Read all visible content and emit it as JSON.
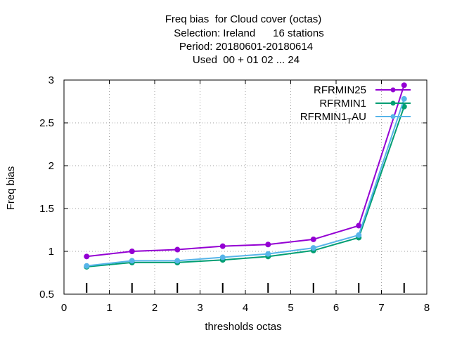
{
  "chart_data": {
    "type": "line",
    "title_lines": [
      "Freq bias  for Cloud cover (octas)",
      "Selection: Ireland      16 stations",
      "Period: 20180601-20180614",
      "Used  00 + 01 02 ... 24"
    ],
    "xlabel": "thresholds octas",
    "ylabel": "Freq bias",
    "xlim": [
      0,
      8
    ],
    "ylim": [
      0.5,
      3
    ],
    "x_ticks": [
      "0",
      "1",
      "2",
      "3",
      "4",
      "5",
      "6",
      "7",
      "8"
    ],
    "y_ticks": [
      "0.5",
      "1",
      "1.5",
      "2",
      "2.5",
      "3"
    ],
    "grid": true,
    "legend_position": "top-right",
    "x": [
      0.5,
      1.5,
      2.5,
      3.5,
      4.5,
      5.5,
      6.5,
      7.5
    ],
    "series": [
      {
        "name": "RFRMIN25",
        "color": "#9400d3",
        "values": [
          0.94,
          1.0,
          1.02,
          1.06,
          1.08,
          1.14,
          1.3,
          2.94
        ]
      },
      {
        "name": "RFRMIN1",
        "color": "#009e73",
        "values": [
          0.82,
          0.87,
          0.87,
          0.9,
          0.94,
          1.01,
          1.16,
          2.69
        ]
      },
      {
        "name_main": "RFRMIN1",
        "name_sub": "T",
        "name_tail": "AU",
        "color": "#56b4e9",
        "values": [
          0.83,
          0.89,
          0.89,
          0.93,
          0.97,
          1.04,
          1.19,
          2.78
        ]
      }
    ]
  }
}
